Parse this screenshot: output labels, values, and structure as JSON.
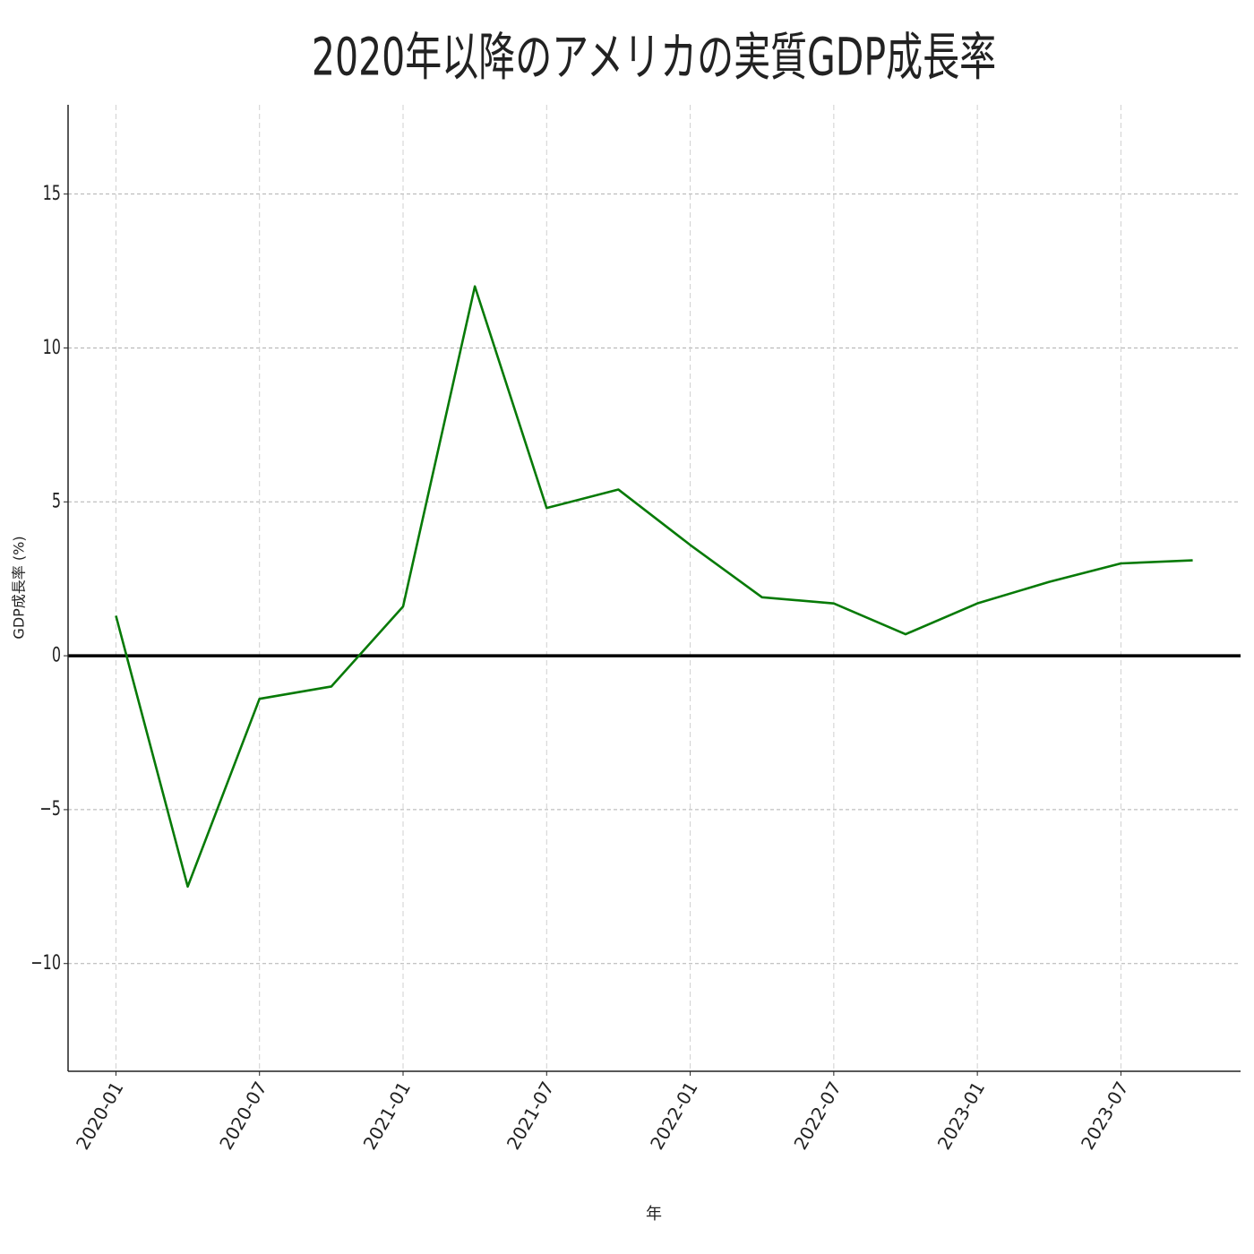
{
  "chart_data": {
    "type": "line",
    "title": "2020年以降のアメリカの実質GDP成長率",
    "x_label": "年",
    "y_label": "GDP成長率 (%)",
    "x": [
      "2020-01",
      "2020-04",
      "2020-07",
      "2020-10",
      "2021-01",
      "2021-04",
      "2021-07",
      "2021-10",
      "2022-01",
      "2022-04",
      "2022-07",
      "2022-10",
      "2023-01",
      "2023-04",
      "2023-07",
      "2023-10"
    ],
    "series": [
      {
        "color": "#077a07",
        "values": [
          1.3,
          -7.5,
          -1.4,
          -1.0,
          1.6,
          12.0,
          4.8,
          5.4,
          3.6,
          1.9,
          1.7,
          0.7,
          1.7,
          2.4,
          3.0,
          3.1
        ]
      }
    ],
    "xlim": [
      "2019-11",
      "2023-12"
    ],
    "xticks": [
      "2020-01",
      "2020-07",
      "2021-01",
      "2021-07",
      "2022-01",
      "2022-07",
      "2023-01",
      "2023-07"
    ],
    "ylim": [
      -13.5,
      17.9
    ],
    "yticks": [
      {
        "value": -10,
        "label": "−10"
      },
      {
        "value": -5,
        "label": "−5"
      },
      0,
      5,
      10,
      15
    ],
    "hline": 0,
    "grid": true
  }
}
